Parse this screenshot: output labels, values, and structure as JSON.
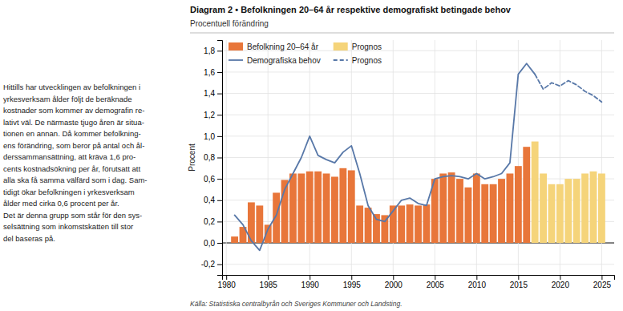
{
  "chart_data": {
    "type": "bar",
    "title": "Diagram 2 • Befolkningen 20–64 år respektive demografiskt betingade behov",
    "subtitle": "Procentuell förändring",
    "ylabel": "Procent",
    "source": "Källa: Statistiska centralbyrån och Sveriges Kommuner och Landsting.",
    "annotations": [
      "Hittills har utvecklingen av befolkningen i\nyrkesverksam ålder följt de beräknade\nkostnader som kommer av demografin re-\nlativt väl. De närmaste tjugo åren är situa-\ntionen en annan. Då kommer befolkning-\nens förändring, som beror på antal och ål-\nderssammansättning, att kräva 1,6 pro-\ncents kostnadsökning per år, förutsatt att\nalla ska få samma välfärd som i dag. Sam-\ntidigt ökar befolkningen i yrkesverksam\nålder med cirka 0,6 procent per år.\nDet är denna grupp som står för den sys-\nselsättning som inkomstskatten till stor\ndel baseras på."
    ],
    "series": [
      {
        "name": "Befolkning 20–64 år",
        "type": "bar",
        "color": "#e8763a",
        "x": [
          1981,
          1982,
          1983,
          1984,
          1985,
          1986,
          1987,
          1988,
          1989,
          1990,
          1991,
          1992,
          1993,
          1994,
          1995,
          1996,
          1997,
          1998,
          1999,
          2000,
          2001,
          2002,
          2003,
          2004,
          2005,
          2006,
          2007,
          2008,
          2009,
          2010,
          2011,
          2012,
          2013,
          2014,
          2015,
          2016
        ],
        "values": [
          0.06,
          0.15,
          0.38,
          0.35,
          0.17,
          0.47,
          0.59,
          0.65,
          0.65,
          0.67,
          0.67,
          0.65,
          0.62,
          0.7,
          0.68,
          0.35,
          0.33,
          0.27,
          0.26,
          0.35,
          0.35,
          0.36,
          0.35,
          0.36,
          0.6,
          0.65,
          0.66,
          0.6,
          0.52,
          0.65,
          0.55,
          0.55,
          0.6,
          0.65,
          0.72,
          0.9
        ]
      },
      {
        "name": "Prognos",
        "type": "bar",
        "color": "#f5d47a",
        "x": [
          2017,
          2018,
          2019,
          2020,
          2021,
          2022,
          2023,
          2024,
          2025
        ],
        "values": [
          0.95,
          0.65,
          0.55,
          0.55,
          0.6,
          0.6,
          0.65,
          0.67,
          0.65
        ]
      },
      {
        "name": "Demografiska behov",
        "type": "line",
        "color": "#5878a8",
        "line_style": "solid",
        "x": [
          1981,
          1982,
          1983,
          1984,
          1985,
          1986,
          1987,
          1988,
          1989,
          1990,
          1991,
          1992,
          1993,
          1994,
          1995,
          1996,
          1997,
          1998,
          1999,
          2000,
          2001,
          2002,
          2003,
          2004,
          2005,
          2006,
          2007,
          2008,
          2009,
          2010,
          2011,
          2012,
          2013,
          2014,
          2015,
          2016,
          2017
        ],
        "values": [
          0.26,
          0.17,
          0.02,
          -0.07,
          0.13,
          0.26,
          0.5,
          0.65,
          0.8,
          1.0,
          0.82,
          0.78,
          0.75,
          0.85,
          0.91,
          0.65,
          0.35,
          0.22,
          0.2,
          0.3,
          0.4,
          0.42,
          0.37,
          0.35,
          0.6,
          0.62,
          0.63,
          0.62,
          0.6,
          0.65,
          0.6,
          0.62,
          0.65,
          0.75,
          1.58,
          1.68,
          1.58
        ]
      },
      {
        "name": "Prognos",
        "type": "line",
        "color": "#5878a8",
        "line_style": "dashed",
        "x": [
          2017,
          2018,
          2019,
          2020,
          2021,
          2022,
          2023,
          2024,
          2025
        ],
        "values": [
          1.58,
          1.44,
          1.5,
          1.47,
          1.52,
          1.48,
          1.42,
          1.38,
          1.32
        ]
      }
    ],
    "xlim": [
      1979.5,
      2026.5
    ],
    "ylim": [
      -0.3,
      1.9
    ],
    "xticks": [
      1980,
      1985,
      1990,
      1995,
      2000,
      2005,
      2010,
      2015,
      2020,
      2025
    ],
    "yticks": [
      {
        "value": -0.2,
        "label": "-0,2"
      },
      {
        "value": 0.0,
        "label": "0,0"
      },
      {
        "value": 0.2,
        "label": "0,2"
      },
      {
        "value": 0.4,
        "label": "0,4"
      },
      {
        "value": 0.6,
        "label": "0,6"
      },
      {
        "value": 0.8,
        "label": "0,8"
      },
      {
        "value": 1.0,
        "label": "1,0"
      },
      {
        "value": 1.2,
        "label": "1,2"
      },
      {
        "value": 1.4,
        "label": "1,4"
      },
      {
        "value": 1.6,
        "label": "1,6"
      },
      {
        "value": 1.8,
        "label": "1,8"
      }
    ],
    "grid": true,
    "legend": "upper left"
  }
}
